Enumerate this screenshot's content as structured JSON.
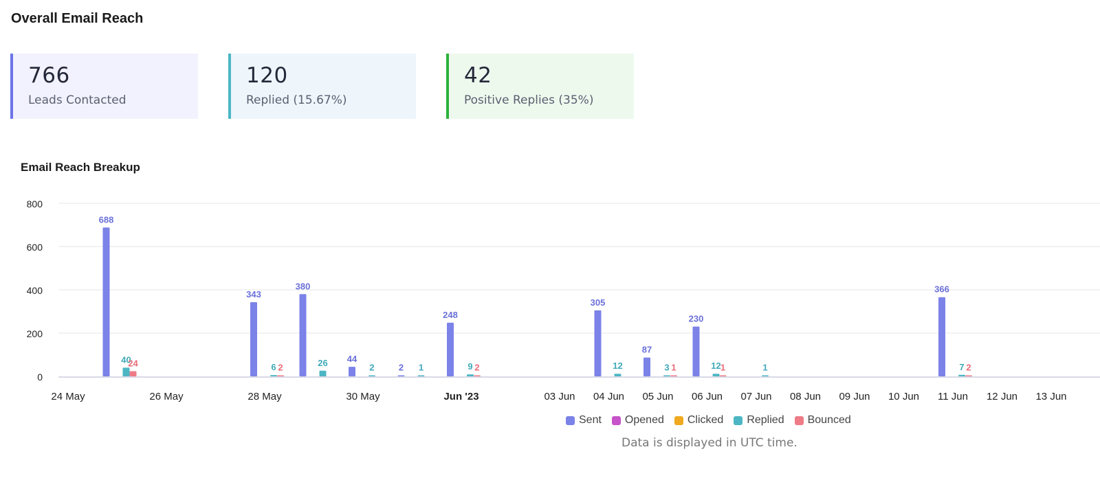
{
  "page": {
    "title": "Overall Email Reach"
  },
  "stats": [
    {
      "value": "766",
      "label": "Leads Contacted",
      "color": "#6c74e8",
      "bg": "#f2f2fe"
    },
    {
      "value": "120",
      "label": "Replied (15.67%)",
      "color": "#4db6c4",
      "bg": "#eef6fc"
    },
    {
      "value": "42",
      "label": "Positive Replies (35%)",
      "color": "#2bb23a",
      "bg": "#eef9ee"
    }
  ],
  "chart_title": "Email Reach Breakup",
  "note": "Data is displayed in UTC time.",
  "chart_data": {
    "type": "bar",
    "ylim": [
      0,
      800
    ],
    "yticks": [
      0,
      200,
      400,
      600,
      800
    ],
    "grid": true,
    "legend_position": "bottom-center",
    "x_start": "2023-05-24",
    "x_end": "2023-06-13",
    "x_tick_labels": [
      {
        "date": "2023-05-24",
        "label": "24 May",
        "bold": false
      },
      {
        "date": "2023-05-26",
        "label": "26 May",
        "bold": false
      },
      {
        "date": "2023-05-28",
        "label": "28 May",
        "bold": false
      },
      {
        "date": "2023-05-30",
        "label": "30 May",
        "bold": false
      },
      {
        "date": "2023-06-01",
        "label": "Jun '23",
        "bold": true
      },
      {
        "date": "2023-06-03",
        "label": "03 Jun",
        "bold": false
      },
      {
        "date": "2023-06-04",
        "label": "04 Jun",
        "bold": false
      },
      {
        "date": "2023-06-05",
        "label": "05 Jun",
        "bold": false
      },
      {
        "date": "2023-06-06",
        "label": "06 Jun",
        "bold": false
      },
      {
        "date": "2023-06-07",
        "label": "07 Jun",
        "bold": false
      },
      {
        "date": "2023-06-08",
        "label": "08 Jun",
        "bold": false
      },
      {
        "date": "2023-06-09",
        "label": "09 Jun",
        "bold": false
      },
      {
        "date": "2023-06-10",
        "label": "10 Jun",
        "bold": false
      },
      {
        "date": "2023-06-11",
        "label": "11 Jun",
        "bold": false
      },
      {
        "date": "2023-06-12",
        "label": "12 Jun",
        "bold": false
      },
      {
        "date": "2023-06-13",
        "label": "13 Jun",
        "bold": false
      }
    ],
    "series": [
      {
        "name": "Sent",
        "color": "#7b82e8",
        "label_color": "#6a70d8"
      },
      {
        "name": "Opened",
        "color": "#c653c9",
        "label_color": "#c653c9"
      },
      {
        "name": "Clicked",
        "color": "#f0a920",
        "label_color": "#f0a920"
      },
      {
        "name": "Replied",
        "color": "#4db6c4",
        "label_color": "#3fa9b8"
      },
      {
        "name": "Bounced",
        "color": "#ee7b86",
        "label_color": "#e86b78"
      }
    ],
    "points": [
      {
        "date": "2023-05-25",
        "sent": 688,
        "opened": 0,
        "clicked": 0,
        "replied": 40,
        "bounced": 24
      },
      {
        "date": "2023-05-28",
        "sent": 343,
        "opened": 0,
        "clicked": 0,
        "replied": 6,
        "bounced": 2
      },
      {
        "date": "2023-05-29",
        "sent": 380,
        "opened": 0,
        "clicked": 0,
        "replied": 26,
        "bounced": 0
      },
      {
        "date": "2023-05-30",
        "sent": 44,
        "opened": 0,
        "clicked": 0,
        "replied": 2,
        "bounced": 0
      },
      {
        "date": "2023-05-31",
        "sent": 2,
        "opened": 0,
        "clicked": 0,
        "replied": 1,
        "bounced": 0
      },
      {
        "date": "2023-06-01",
        "sent": 248,
        "opened": 0,
        "clicked": 0,
        "replied": 9,
        "bounced": 2
      },
      {
        "date": "2023-06-04",
        "sent": 305,
        "opened": 0,
        "clicked": 0,
        "replied": 12,
        "bounced": 0
      },
      {
        "date": "2023-06-05",
        "sent": 87,
        "opened": 0,
        "clicked": 0,
        "replied": 3,
        "bounced": 1
      },
      {
        "date": "2023-06-06",
        "sent": 230,
        "opened": 0,
        "clicked": 0,
        "replied": 12,
        "bounced": 1
      },
      {
        "date": "2023-06-07",
        "sent": 0,
        "opened": 0,
        "clicked": 0,
        "replied": 1,
        "bounced": 0
      },
      {
        "date": "2023-06-11",
        "sent": 366,
        "opened": 0,
        "clicked": 0,
        "replied": 7,
        "bounced": 2
      }
    ]
  }
}
